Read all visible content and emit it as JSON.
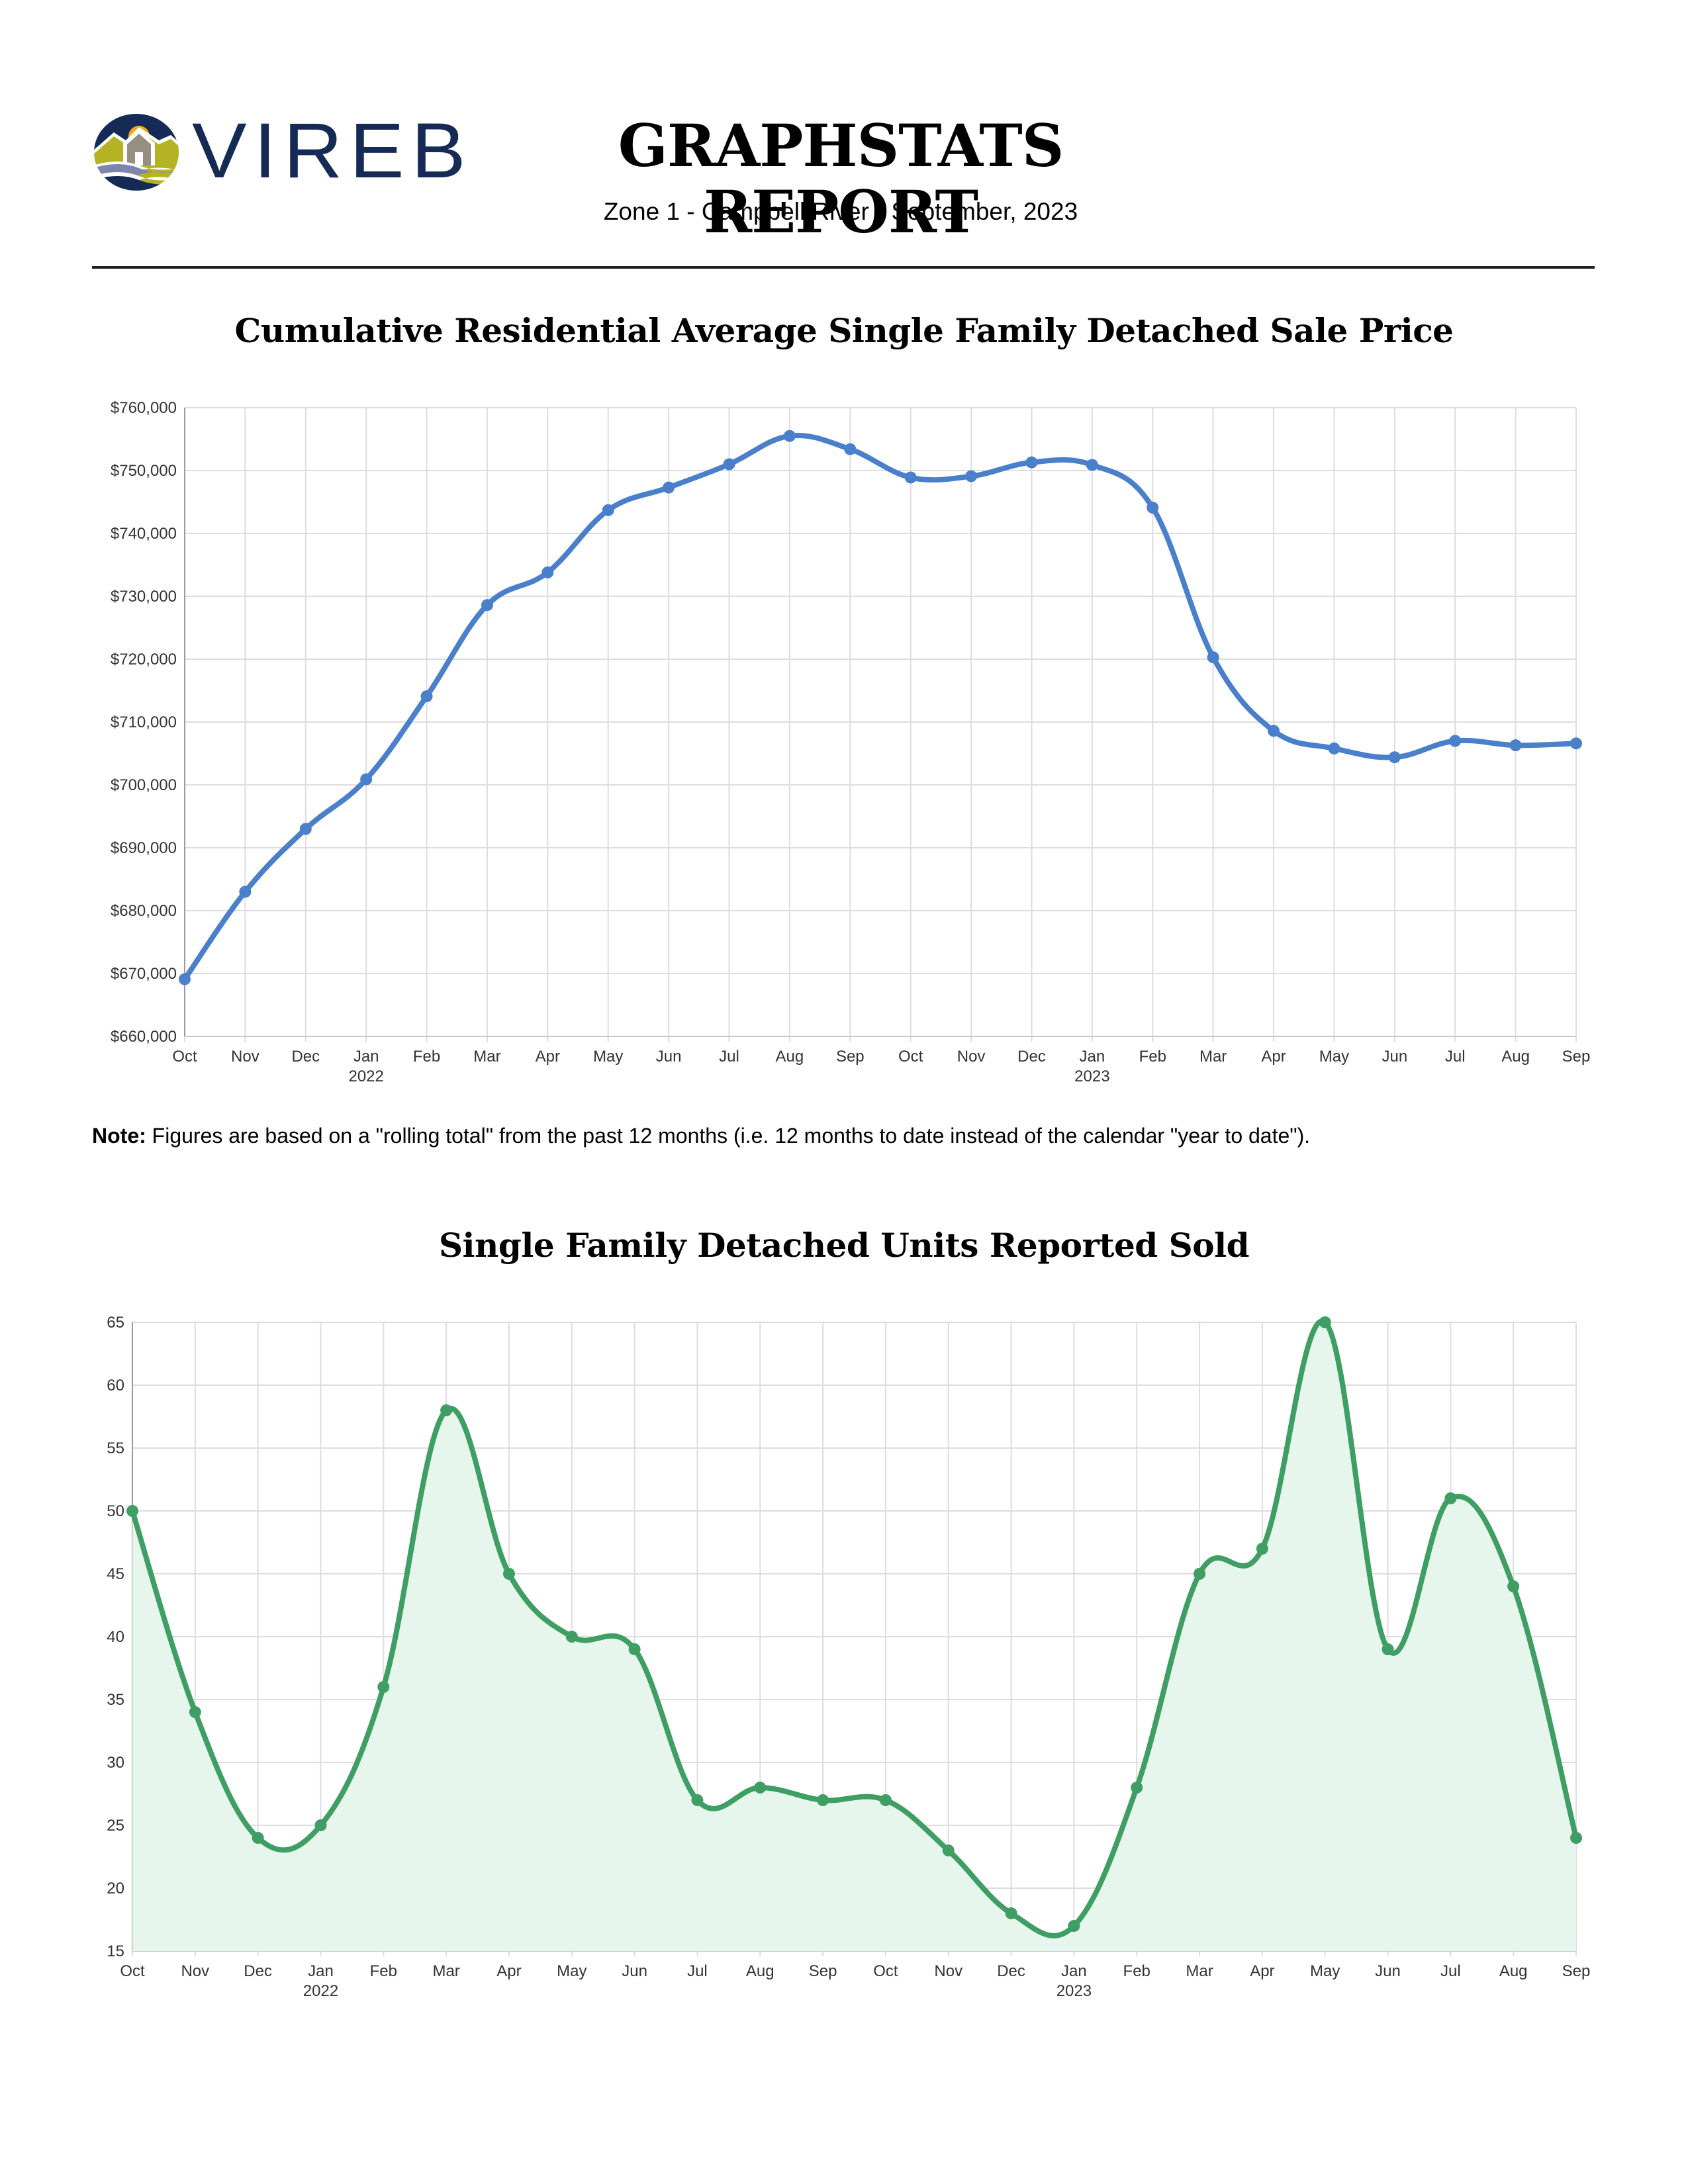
{
  "header": {
    "logo_text": "VIREB",
    "title": "GRAPHSTATS REPORT",
    "subtitle": "Zone 1 - Campbell River  •  September, 2023"
  },
  "note": {
    "label": "Note:",
    "text": " Figures are based on a \"rolling total\" from the past 12 months (i.e. 12 months to date instead of the calendar \"year to date\")."
  },
  "colors": {
    "price_line": "#4a7fcb",
    "units_line": "#3f9e64",
    "units_fill": "#e6f6ec",
    "grid": "#dddddd",
    "logo_navy": "#152a55"
  },
  "chart_data": [
    {
      "type": "line",
      "title": "Cumulative Residential Average Single Family Detached Sale Price",
      "xlabel": "",
      "ylabel": "",
      "categories": [
        "Oct",
        "Nov",
        "Dec",
        "Jan",
        "Feb",
        "Mar",
        "Apr",
        "May",
        "Jun",
        "Jul",
        "Aug",
        "Sep",
        "Oct",
        "Nov",
        "Dec",
        "Jan",
        "Feb",
        "Mar",
        "Apr",
        "May",
        "Jun",
        "Jul",
        "Aug",
        "Sep"
      ],
      "year_labels": [
        {
          "index": 3,
          "label": "2022"
        },
        {
          "index": 15,
          "label": "2023"
        }
      ],
      "values": [
        669100,
        683000,
        693000,
        700900,
        714100,
        728600,
        733800,
        743700,
        747300,
        751000,
        755500,
        753400,
        748900,
        749100,
        751300,
        750900,
        744100,
        720300,
        708600,
        705800,
        704400,
        707000,
        706300,
        706600
      ],
      "ylim": [
        660000,
        760000
      ],
      "yticks": [
        660000,
        670000,
        680000,
        690000,
        700000,
        710000,
        720000,
        730000,
        740000,
        750000,
        760000
      ],
      "ytick_labels": [
        "$660,000",
        "$670,000",
        "$680,000",
        "$690,000",
        "$700,000",
        "$710,000",
        "$720,000",
        "$730,000",
        "$740,000",
        "$750,000",
        "$760,000"
      ],
      "grid": true,
      "legend": "none"
    },
    {
      "type": "area",
      "title": "Single Family Detached Units Reported Sold",
      "xlabel": "",
      "ylabel": "",
      "categories": [
        "Oct",
        "Nov",
        "Dec",
        "Jan",
        "Feb",
        "Mar",
        "Apr",
        "May",
        "Jun",
        "Jul",
        "Aug",
        "Sep",
        "Oct",
        "Nov",
        "Dec",
        "Jan",
        "Feb",
        "Mar",
        "Apr",
        "May",
        "Jun",
        "Jul",
        "Aug",
        "Sep"
      ],
      "year_labels": [
        {
          "index": 3,
          "label": "2022"
        },
        {
          "index": 15,
          "label": "2023"
        }
      ],
      "values": [
        50,
        34,
        24,
        25,
        36,
        58,
        45,
        40,
        39,
        27,
        28,
        27,
        27,
        23,
        18,
        17,
        28,
        45,
        47,
        65,
        39,
        51,
        44,
        24
      ],
      "ylim": [
        15,
        65
      ],
      "yticks": [
        15,
        20,
        25,
        30,
        35,
        40,
        45,
        50,
        55,
        60,
        65
      ],
      "ytick_labels": [
        "15",
        "20",
        "25",
        "30",
        "35",
        "40",
        "45",
        "50",
        "55",
        "60",
        "65"
      ],
      "grid": true,
      "legend": "none"
    }
  ]
}
